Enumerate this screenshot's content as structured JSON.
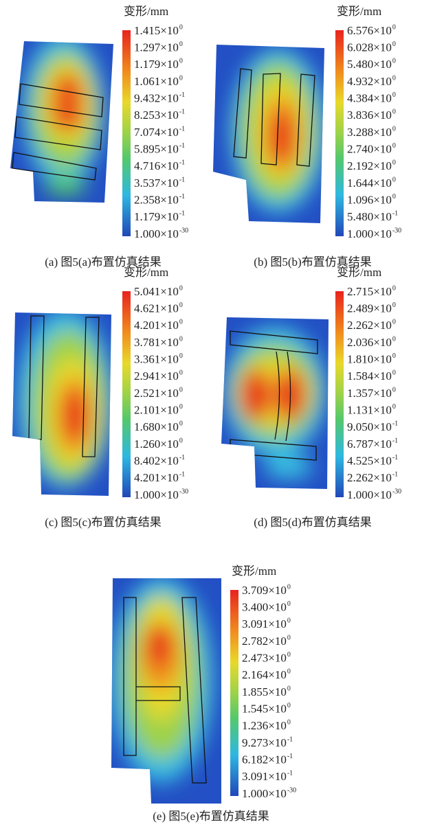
{
  "panels": [
    {
      "legend_title": "变形/mm",
      "caption": "(a) 图5(a)布置仿真结果",
      "ticks": [
        {
          "m": "1.415×10",
          "e": "0"
        },
        {
          "m": "1.297×10",
          "e": "0"
        },
        {
          "m": "1.179×10",
          "e": "0"
        },
        {
          "m": "1.061×10",
          "e": "0"
        },
        {
          "m": "9.432×10",
          "e": "-1"
        },
        {
          "m": "8.253×10",
          "e": "-1"
        },
        {
          "m": "7.074×10",
          "e": "-1"
        },
        {
          "m": "5.895×10",
          "e": "-1"
        },
        {
          "m": "4.716×10",
          "e": "-1"
        },
        {
          "m": "3.537×10",
          "e": "-1"
        },
        {
          "m": "2.358×10",
          "e": "-1"
        },
        {
          "m": "1.179×10",
          "e": "-1"
        },
        {
          "m": "1.000×10",
          "e": "-30"
        }
      ]
    },
    {
      "legend_title": "变形/mm",
      "caption": "(b) 图5(b)布置仿真结果",
      "ticks": [
        {
          "m": "6.576×10",
          "e": "0"
        },
        {
          "m": "6.028×10",
          "e": "0"
        },
        {
          "m": "5.480×10",
          "e": "0"
        },
        {
          "m": "4.932×10",
          "e": "0"
        },
        {
          "m": "4.384×10",
          "e": "0"
        },
        {
          "m": "3.836×10",
          "e": "0"
        },
        {
          "m": "3.288×10",
          "e": "0"
        },
        {
          "m": "2.740×10",
          "e": "0"
        },
        {
          "m": "2.192×10",
          "e": "0"
        },
        {
          "m": "1.644×10",
          "e": "0"
        },
        {
          "m": "1.096×10",
          "e": "0"
        },
        {
          "m": "5.480×10",
          "e": "-1"
        },
        {
          "m": "1.000×10",
          "e": "-30"
        }
      ]
    },
    {
      "legend_title": "变形/mm",
      "caption": "(c) 图5(c)布置仿真结果",
      "ticks": [
        {
          "m": "5.041×10",
          "e": "0"
        },
        {
          "m": "4.621×10",
          "e": "0"
        },
        {
          "m": "4.201×10",
          "e": "0"
        },
        {
          "m": "3.781×10",
          "e": "0"
        },
        {
          "m": "3.361×10",
          "e": "0"
        },
        {
          "m": "2.941×10",
          "e": "0"
        },
        {
          "m": "2.521×10",
          "e": "0"
        },
        {
          "m": "2.101×10",
          "e": "0"
        },
        {
          "m": "1.680×10",
          "e": "0"
        },
        {
          "m": "1.260×10",
          "e": "0"
        },
        {
          "m": "8.402×10",
          "e": "-1"
        },
        {
          "m": "4.201×10",
          "e": "-1"
        },
        {
          "m": "1.000×10",
          "e": "-30"
        }
      ]
    },
    {
      "legend_title": "变形/mm",
      "caption": "(d) 图5(d)布置仿真结果",
      "ticks": [
        {
          "m": "2.715×10",
          "e": "0"
        },
        {
          "m": "2.489×10",
          "e": "0"
        },
        {
          "m": "2.262×10",
          "e": "0"
        },
        {
          "m": "2.036×10",
          "e": "0"
        },
        {
          "m": "1.810×10",
          "e": "0"
        },
        {
          "m": "1.584×10",
          "e": "0"
        },
        {
          "m": "1.357×10",
          "e": "0"
        },
        {
          "m": "1.131×10",
          "e": "0"
        },
        {
          "m": "9.050×10",
          "e": "-1"
        },
        {
          "m": "6.787×10",
          "e": "-1"
        },
        {
          "m": "4.525×10",
          "e": "-1"
        },
        {
          "m": "2.262×10",
          "e": "-1"
        },
        {
          "m": "1.000×10",
          "e": "-30"
        }
      ]
    },
    {
      "legend_title": "变形/mm",
      "caption": "(e) 图5(e)布置仿真结果",
      "ticks": [
        {
          "m": "3.709×10",
          "e": "0"
        },
        {
          "m": "3.400×10",
          "e": "0"
        },
        {
          "m": "3.091×10",
          "e": "0"
        },
        {
          "m": "2.782×10",
          "e": "0"
        },
        {
          "m": "2.473×10",
          "e": "0"
        },
        {
          "m": "2.164×10",
          "e": "0"
        },
        {
          "m": "1.855×10",
          "e": "0"
        },
        {
          "m": "1.545×10",
          "e": "0"
        },
        {
          "m": "1.236×10",
          "e": "0"
        },
        {
          "m": "9.273×10",
          "e": "-1"
        },
        {
          "m": "6.182×10",
          "e": "-1"
        },
        {
          "m": "3.091×10",
          "e": "-1"
        },
        {
          "m": "1.000×10",
          "e": "-30"
        }
      ]
    }
  ]
}
